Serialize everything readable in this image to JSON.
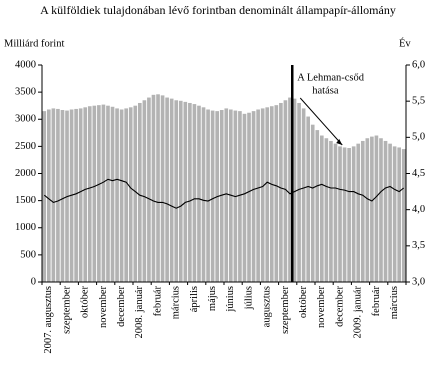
{
  "chart_data": {
    "type": "bar",
    "title": "A külföldiek tulajdonában lévő forintban denominált állampapír-állomány",
    "ylabel": "Milliárd forint",
    "y2label": "Év",
    "annotation": [
      "A Lehman-csőd",
      "hatása"
    ],
    "categories": [
      null,
      "2007. augusztus",
      null,
      null,
      null,
      "szeptember",
      null,
      null,
      null,
      "október",
      null,
      null,
      null,
      "november",
      null,
      null,
      null,
      "december",
      null,
      null,
      null,
      "2008. január",
      null,
      null,
      null,
      "február",
      null,
      null,
      null,
      "március",
      null,
      null,
      null,
      "április",
      null,
      null,
      null,
      "május",
      null,
      null,
      null,
      "június",
      null,
      null,
      null,
      "július",
      null,
      null,
      null,
      "augusztus",
      null,
      null,
      null,
      "szeptember",
      null,
      null,
      null,
      "október",
      null,
      null,
      null,
      "november",
      null,
      null,
      null,
      "december",
      null,
      null,
      null,
      "2009. január",
      null,
      null,
      null,
      "február",
      null,
      null,
      null,
      "március",
      null,
      null
    ],
    "series": [
      {
        "type": "bar",
        "color": "#b3b3b3",
        "values": [
          3150,
          3180,
          3200,
          3190,
          3170,
          3160,
          3180,
          3190,
          3200,
          3220,
          3240,
          3250,
          3260,
          3270,
          3250,
          3230,
          3200,
          3180,
          3200,
          3220,
          3250,
          3300,
          3350,
          3400,
          3450,
          3460,
          3440,
          3400,
          3380,
          3350,
          3340,
          3320,
          3300,
          3280,
          3250,
          3220,
          3180,
          3160,
          3150,
          3170,
          3200,
          3180,
          3160,
          3150,
          3100,
          3120,
          3150,
          3180,
          3200,
          3220,
          3240,
          3260,
          3300,
          3350,
          3400,
          3380,
          3300,
          3200,
          3050,
          2900,
          2800,
          2700,
          2650,
          2600,
          2550,
          2500,
          2480,
          2470,
          2500,
          2550,
          2600,
          2650,
          2680,
          2700,
          2650,
          2600,
          2550,
          2500,
          2480,
          2450
        ]
      },
      {
        "type": "line",
        "axis": "y2",
        "color": "#000000",
        "values": [
          4.2,
          4.15,
          4.1,
          4.12,
          4.15,
          4.18,
          4.2,
          4.22,
          4.25,
          4.28,
          4.3,
          4.32,
          4.35,
          4.38,
          4.42,
          4.4,
          4.42,
          4.4,
          4.38,
          4.3,
          4.25,
          4.2,
          4.18,
          4.15,
          4.12,
          4.1,
          4.1,
          4.08,
          4.05,
          4.02,
          4.05,
          4.1,
          4.12,
          4.15,
          4.15,
          4.13,
          4.12,
          4.15,
          4.18,
          4.2,
          4.22,
          4.2,
          4.18,
          4.2,
          4.22,
          4.25,
          4.28,
          4.3,
          4.32,
          4.38,
          4.35,
          4.33,
          4.3,
          4.28,
          4.22,
          4.25,
          4.28,
          4.3,
          4.32,
          4.3,
          4.33,
          4.35,
          4.32,
          4.3,
          4.3,
          4.28,
          4.27,
          4.25,
          4.25,
          4.22,
          4.2,
          4.15,
          4.12,
          4.18,
          4.25,
          4.3,
          4.32,
          4.28,
          4.25,
          4.3
        ]
      }
    ],
    "ylim": [
      0,
      4000
    ],
    "yticks": [
      0,
      500,
      1000,
      1500,
      2000,
      2500,
      3000,
      3500,
      4000
    ],
    "y2lim": [
      3,
      6
    ],
    "y2ticks": [
      {
        "value": 3,
        "label": "3,0"
      },
      {
        "value": 3.5,
        "label": "3,5"
      },
      {
        "value": 4,
        "label": "4,0"
      },
      {
        "value": 4.5,
        "label": "4,5"
      },
      {
        "value": 5,
        "label": "5,0"
      },
      {
        "value": 5.5,
        "label": "5,5"
      },
      {
        "value": 6,
        "label": "6,0"
      }
    ]
  }
}
